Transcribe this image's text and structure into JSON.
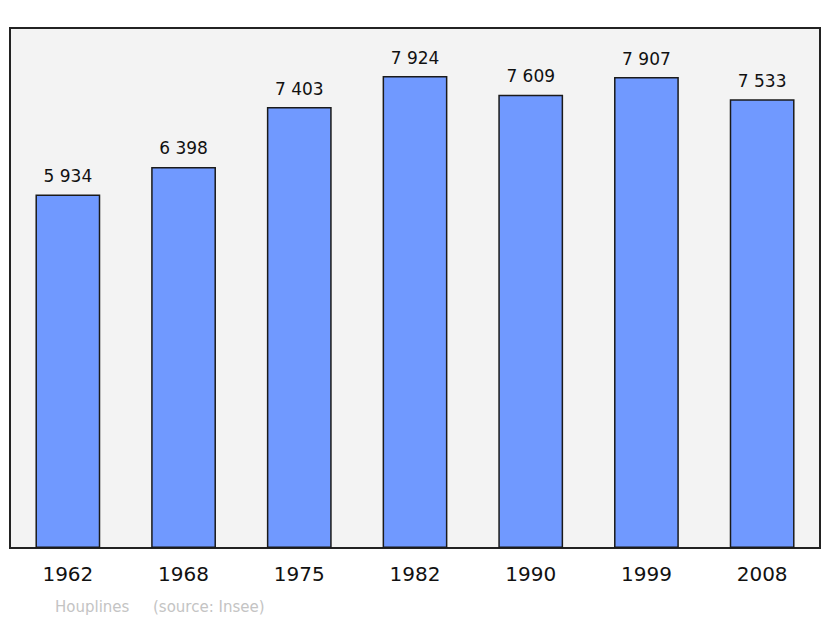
{
  "chart_data": {
    "type": "bar",
    "title": "Houplines",
    "subtitle": "(source: Insee)",
    "categories": [
      "1962",
      "1968",
      "1975",
      "1982",
      "1990",
      "1999",
      "2008"
    ],
    "values": [
      5934,
      6398,
      7403,
      7924,
      7609,
      7907,
      7533
    ],
    "value_labels": [
      "5 934",
      "6 398",
      "7 403",
      "7 924",
      "7 609",
      "7 907",
      "7 533"
    ],
    "color": "#7099ff",
    "ylim": [
      0,
      8730
    ],
    "grid": false,
    "data_labels": true,
    "tick_labels": "x"
  }
}
